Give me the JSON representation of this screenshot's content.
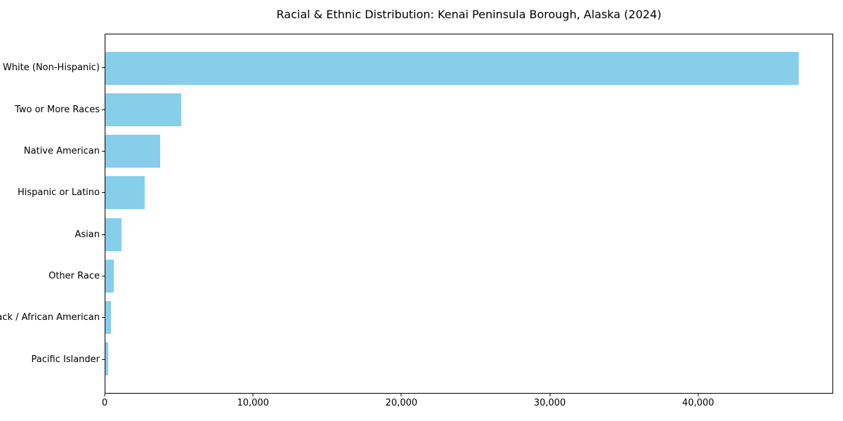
{
  "chart_data": {
    "type": "bar",
    "orientation": "horizontal",
    "title": "Racial & Ethnic Distribution: Kenai Peninsula Borough, Alaska (2024)",
    "categories": [
      "White (Non-Hispanic)",
      "Two or More Races",
      "Native American",
      "Hispanic or Latino",
      "Asian",
      "Other Race",
      "Black / African American",
      "Pacific Islander"
    ],
    "values": [
      46800,
      5100,
      3700,
      2650,
      1100,
      550,
      400,
      170
    ],
    "xlabel": "",
    "ylabel": "",
    "xlim": [
      0,
      49100
    ],
    "x_ticks": [
      {
        "value": 0,
        "label": "0"
      },
      {
        "value": 10000,
        "label": "10,000"
      },
      {
        "value": 20000,
        "label": "20,000"
      },
      {
        "value": 30000,
        "label": "30,000"
      },
      {
        "value": 40000,
        "label": "40,000"
      }
    ],
    "grid": false,
    "legend": null,
    "bar_color": "#87ceeb",
    "background_color": "#ffffff",
    "spine_color": "#000000",
    "text_color": "#000000"
  }
}
